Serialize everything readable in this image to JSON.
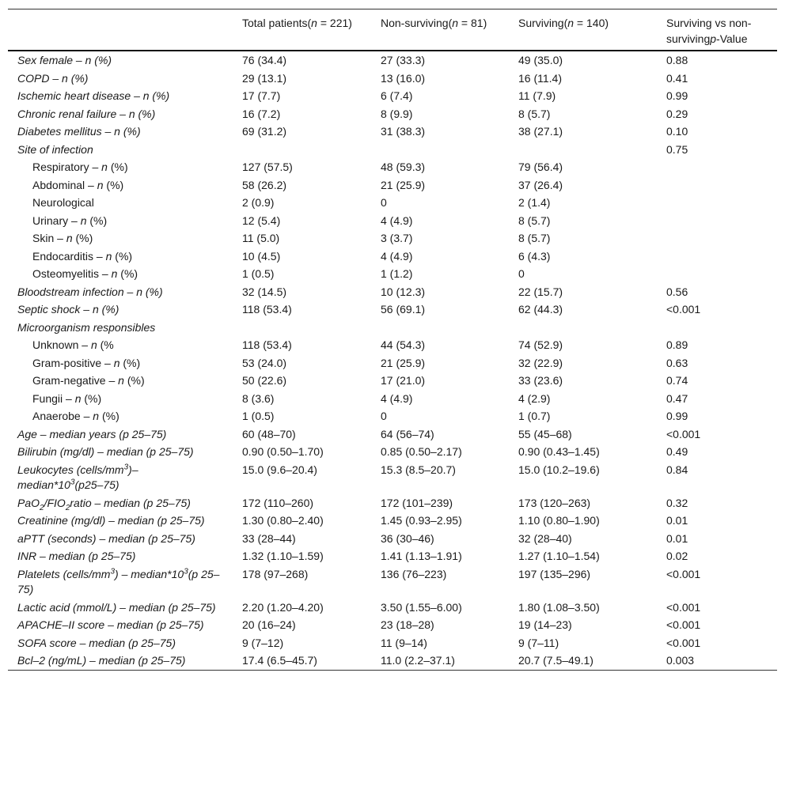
{
  "header": [
    [
      [
        "",
        ""
      ]
    ],
    [
      [
        "Total patients(",
        ""
      ],
      [
        "n",
        "i"
      ],
      [
        "  =  221)",
        ""
      ]
    ],
    [
      [
        "Non-surviving(",
        ""
      ],
      [
        "n",
        "i"
      ],
      [
        "  =  81)",
        ""
      ]
    ],
    [
      [
        "Surviving(",
        ""
      ],
      [
        "n",
        "i"
      ],
      [
        "  =  140)",
        ""
      ]
    ],
    [
      [
        "Surviving vs non-surviving",
        ""
      ],
      [
        "p",
        "i"
      ],
      [
        "-Value",
        ""
      ]
    ]
  ],
  "rows": [
    {
      "label": [
        [
          "Sex female – n (%)",
          "i"
        ]
      ],
      "values": [
        "76 (34.4)",
        "27 (33.3)",
        "49 (35.0)",
        "0.88"
      ]
    },
    {
      "label": [
        [
          "COPD – n (%)",
          "i"
        ]
      ],
      "values": [
        "29 (13.1)",
        "13 (16.0)",
        "16 (11.4)",
        "0.41"
      ]
    },
    {
      "label": [
        [
          "Ischemic heart disease – n (%)",
          "i"
        ]
      ],
      "values": [
        "17 (7.7)",
        "6 (7.4)",
        "11 (7.9)",
        "0.99"
      ]
    },
    {
      "label": [
        [
          "Chronic renal failure – n (%)",
          "i"
        ]
      ],
      "values": [
        "16 (7.2)",
        "8 (9.9)",
        "8 (5.7)",
        "0.29"
      ]
    },
    {
      "label": [
        [
          "Diabetes mellitus – n (%)",
          "i"
        ]
      ],
      "values": [
        "69 (31.2)",
        "31 (38.3)",
        "38 (27.1)",
        "0.10"
      ]
    },
    {
      "label": [
        [
          "Site of infection",
          "i"
        ]
      ],
      "values": [
        "",
        "",
        "",
        "0.75"
      ]
    },
    {
      "indent": true,
      "label": [
        [
          "Respiratory – ",
          ""
        ],
        [
          "n",
          "i"
        ],
        [
          " (%)",
          ""
        ]
      ],
      "values": [
        "127 (57.5)",
        "48 (59.3)",
        "79 (56.4)",
        ""
      ]
    },
    {
      "indent": true,
      "label": [
        [
          "Abdominal – ",
          ""
        ],
        [
          "n",
          "i"
        ],
        [
          " (%)",
          ""
        ]
      ],
      "values": [
        "58 (26.2)",
        "21 (25.9)",
        "37 (26.4)",
        ""
      ]
    },
    {
      "indent": true,
      "label": [
        [
          "Neurological",
          ""
        ]
      ],
      "values": [
        "2 (0.9)",
        "0",
        "2 (1.4)",
        ""
      ]
    },
    {
      "indent": true,
      "label": [
        [
          "Urinary – ",
          ""
        ],
        [
          "n",
          "i"
        ],
        [
          " (%)",
          ""
        ]
      ],
      "values": [
        "12 (5.4)",
        "4 (4.9)",
        "8 (5.7)",
        ""
      ]
    },
    {
      "indent": true,
      "label": [
        [
          "Skin – ",
          ""
        ],
        [
          "n",
          "i"
        ],
        [
          " (%)",
          ""
        ]
      ],
      "values": [
        "11 (5.0)",
        "3 (3.7)",
        "8 (5.7)",
        ""
      ]
    },
    {
      "indent": true,
      "label": [
        [
          "Endocarditis – ",
          ""
        ],
        [
          "n",
          "i"
        ],
        [
          " (%)",
          ""
        ]
      ],
      "values": [
        "10 (4.5)",
        "4 (4.9)",
        "6 (4.3)",
        ""
      ]
    },
    {
      "indent": true,
      "label": [
        [
          "Osteomyelitis – ",
          ""
        ],
        [
          "n",
          "i"
        ],
        [
          " (%)",
          ""
        ]
      ],
      "values": [
        "1 (0.5)",
        "1 (1.2)",
        "0",
        ""
      ]
    },
    {
      "label": [
        [
          "Bloodstream infection – n (%)",
          "i"
        ]
      ],
      "values": [
        "32 (14.5)",
        "10 (12.3)",
        "22 (15.7)",
        "0.56"
      ]
    },
    {
      "label": [
        [
          "Septic shock – n (%)",
          "i"
        ]
      ],
      "values": [
        "118 (53.4)",
        "56 (69.1)",
        "62 (44.3)",
        "<0.001"
      ]
    },
    {
      "label": [
        [
          "Microorganism responsibles",
          "i"
        ]
      ],
      "values": [
        "",
        "",
        "",
        ""
      ]
    },
    {
      "indent": true,
      "label": [
        [
          "Unknown – ",
          ""
        ],
        [
          "n",
          "i"
        ],
        [
          " (%",
          ""
        ]
      ],
      "values": [
        "118 (53.4)",
        "44 (54.3)",
        "74 (52.9)",
        "0.89"
      ]
    },
    {
      "indent": true,
      "label": [
        [
          "Gram-positive – ",
          ""
        ],
        [
          "n",
          "i"
        ],
        [
          " (%)",
          ""
        ]
      ],
      "values": [
        "53 (24.0)",
        "21 (25.9)",
        "32 (22.9)",
        "0.63"
      ]
    },
    {
      "indent": true,
      "label": [
        [
          "Gram-negative – ",
          ""
        ],
        [
          "n",
          "i"
        ],
        [
          " (%)",
          ""
        ]
      ],
      "values": [
        "50 (22.6)",
        "17 (21.0)",
        "33 (23.6)",
        "0.74"
      ]
    },
    {
      "indent": true,
      "label": [
        [
          "Fungii – ",
          ""
        ],
        [
          "n",
          "i"
        ],
        [
          " (%)",
          ""
        ]
      ],
      "values": [
        "8 (3.6)",
        "4 (4.9)",
        "4 (2.9)",
        "0.47"
      ]
    },
    {
      "indent": true,
      "label": [
        [
          "Anaerobe – ",
          ""
        ],
        [
          "n",
          "i"
        ],
        [
          " (%)",
          ""
        ]
      ],
      "values": [
        "1 (0.5)",
        "0",
        "1 (0.7)",
        "0.99"
      ]
    },
    {
      "label": [
        [
          "Age – median years (p 25–75)",
          "i"
        ]
      ],
      "values": [
        "60 (48–70)",
        "64 (56–74)",
        "55 (45–68)",
        "<0.001"
      ]
    },
    {
      "label": [
        [
          "Bilirubin (mg/dl) – median (p 25–75)",
          "i"
        ]
      ],
      "values": [
        "0.90 (0.50–1.70)",
        "0.85 (0.50–2.17)",
        "0.90 (0.43–1.45)",
        "0.49"
      ]
    },
    {
      "label": [
        [
          "Leukocytes (cells/mm",
          "i"
        ],
        [
          "3",
          "isup"
        ],
        [
          ")– median*10",
          "i"
        ],
        [
          "3",
          "isup"
        ],
        [
          "(p25–75)",
          "i"
        ]
      ],
      "values": [
        "15.0 (9.6–20.4)",
        "15.3 (8.5–20.7)",
        "15.0 (10.2–19.6)",
        "0.84"
      ]
    },
    {
      "label": [
        [
          "PaO",
          "i"
        ],
        [
          "2",
          "isub"
        ],
        [
          "/FIO",
          "i"
        ],
        [
          "2",
          "isub"
        ],
        [
          "ratio – median (p 25–75)",
          "i"
        ]
      ],
      "values": [
        "172 (110–260)",
        "172 (101–239)",
        "173 (120–263)",
        "0.32"
      ]
    },
    {
      "label": [
        [
          "Creatinine (mg/dl) – median (p 25–75)",
          "i"
        ]
      ],
      "values": [
        "1.30 (0.80–2.40)",
        "1.45 (0.93–2.95)",
        "1.10 (0.80–1.90)",
        "0.01"
      ]
    },
    {
      "label": [
        [
          "aPTT (seconds) – median (p 25–75)",
          "i"
        ]
      ],
      "values": [
        "33 (28–44)",
        "36 (30–46)",
        "32 (28–40)",
        "0.01"
      ]
    },
    {
      "label": [
        [
          "INR – median (p 25–75)",
          "i"
        ]
      ],
      "values": [
        "1.32 (1.10–1.59)",
        "1.41 (1.13–1.91)",
        "1.27 (1.10–1.54)",
        "0.02"
      ]
    },
    {
      "label": [
        [
          "Platelets (cells/mm",
          "i"
        ],
        [
          "3",
          "isup"
        ],
        [
          ") – median*10",
          "i"
        ],
        [
          "3",
          "isup"
        ],
        [
          "(p 25–75)",
          "i"
        ]
      ],
      "values": [
        "178 (97–268)",
        "136 (76–223)",
        "197 (135–296)",
        "<0.001"
      ]
    },
    {
      "label": [
        [
          "Lactic acid (mmol/L) – median (p 25–75)",
          "i"
        ]
      ],
      "values": [
        "2.20 (1.20–4.20)",
        "3.50 (1.55–6.00)",
        "1.80 (1.08–3.50)",
        "<0.001"
      ]
    },
    {
      "label": [
        [
          "APACHE–II score – median (p 25–75)",
          "i"
        ]
      ],
      "values": [
        "20 (16–24)",
        "23 (18–28)",
        "19 (14–23)",
        "<0.001"
      ]
    },
    {
      "label": [
        [
          "SOFA score – median (p 25–75)",
          "i"
        ]
      ],
      "values": [
        "9 (7–12)",
        "11 (9–14)",
        "9 (7–11)",
        "<0.001"
      ]
    },
    {
      "label": [
        [
          "Bcl–2 (ng/mL) – median (p 25–75)",
          "i"
        ]
      ],
      "values": [
        "17.4 (6.5–45.7)",
        "11.0 (2.2–37.1)",
        "20.7 (7.5–49.1)",
        "0.003"
      ]
    }
  ]
}
